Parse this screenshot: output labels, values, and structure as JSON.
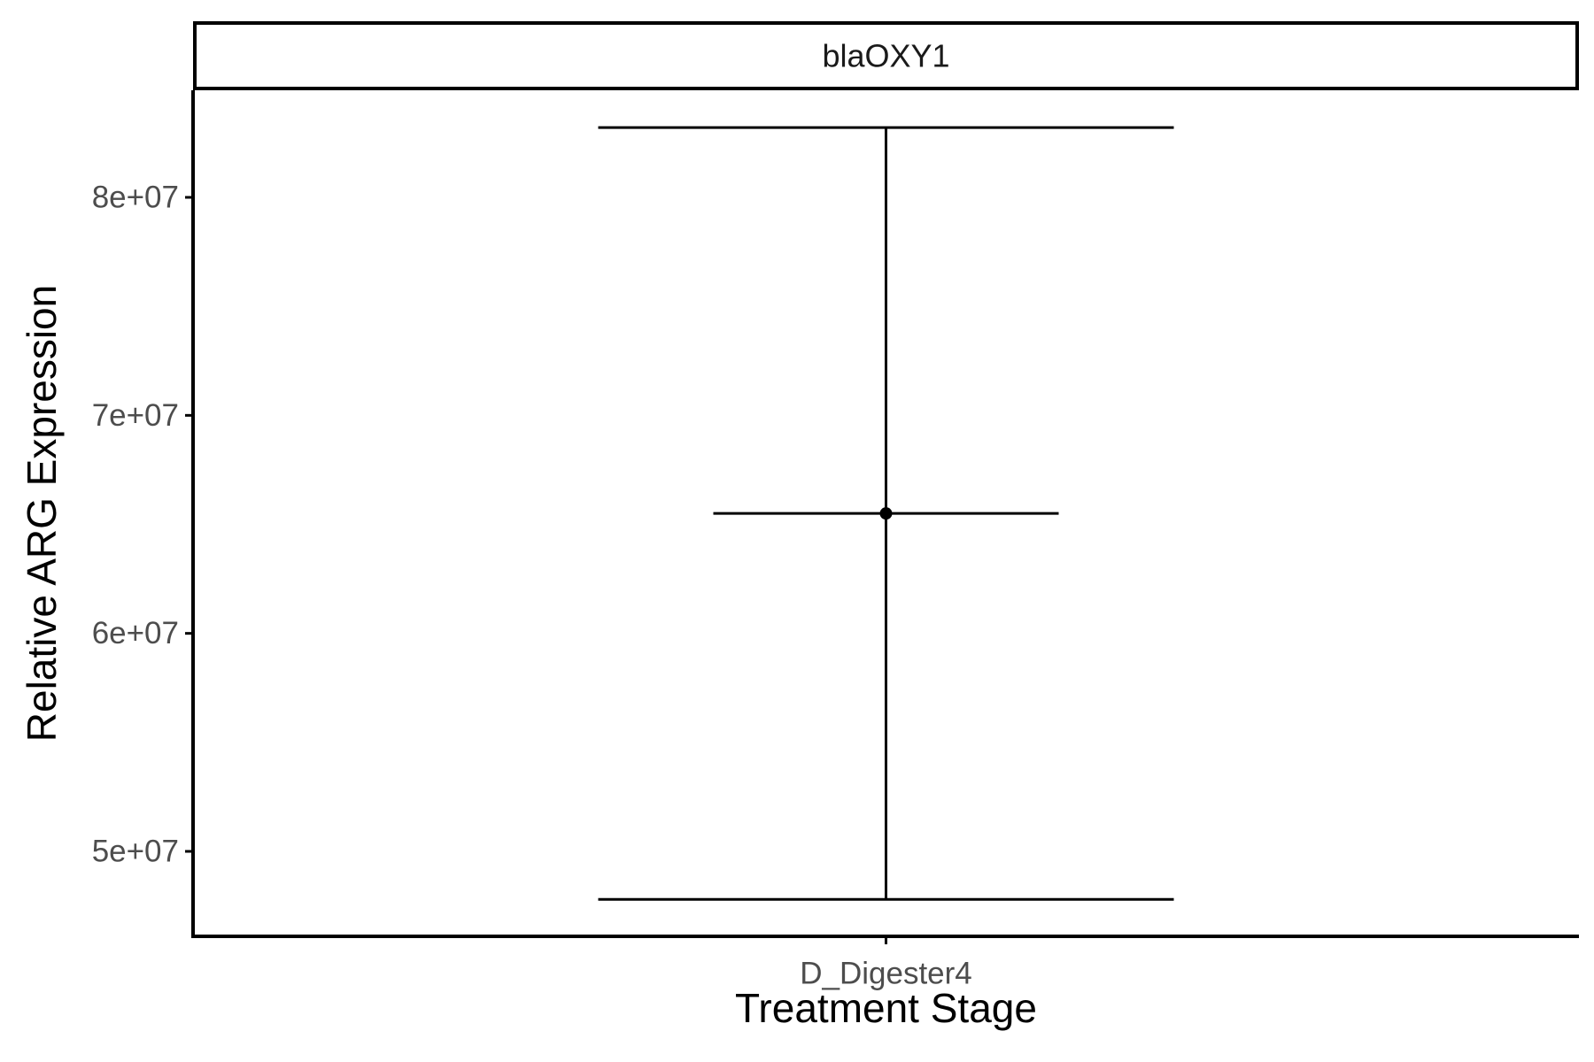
{
  "chart_data": {
    "type": "scatter",
    "facet_label": "blaOXY1",
    "xlabel": "Treatment Stage",
    "ylabel": "Relative ARG Expression",
    "categories": [
      "D_Digester4"
    ],
    "points": [
      {
        "category": "D_Digester4",
        "y": 65500000,
        "y_error_min": 47800000,
        "y_error_max": 83200000,
        "x_error_halfwidth": 0.3
      }
    ],
    "y_ticks": [
      {
        "value": 50000000,
        "label": "5e+07"
      },
      {
        "value": 60000000,
        "label": "6e+07"
      },
      {
        "value": 70000000,
        "label": "7e+07"
      },
      {
        "value": 80000000,
        "label": "8e+07"
      }
    ],
    "ylim": [
      46000000,
      85000000
    ],
    "grid": false,
    "legend": "none",
    "colors": {
      "mark": "#000000",
      "axis": "#000000",
      "tick_label": "#4d4d4d",
      "background": "#ffffff"
    }
  }
}
